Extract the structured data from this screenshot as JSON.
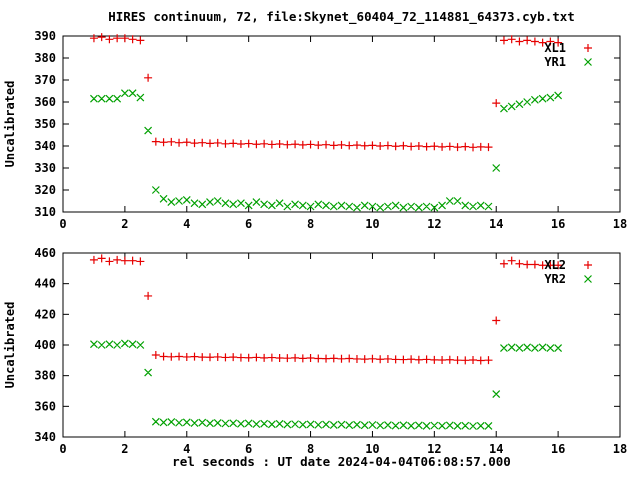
{
  "title": "HIRES continuum, 72, file:Skynet_60404_72_114881_64373.cyb.txt",
  "xlabel": "rel seconds : UT date 2024-04-04T06:08:57.000",
  "colors": {
    "red": "#e60000",
    "green": "#00a000",
    "axis": "#000000",
    "background": "#ffffff"
  },
  "chart_data": [
    {
      "type": "scatter",
      "panel": "top",
      "ylabel": "Uncalibrated",
      "xlim": [
        0,
        18
      ],
      "ylim": [
        310,
        390
      ],
      "xticks": [
        0,
        2,
        4,
        6,
        8,
        10,
        12,
        14,
        16,
        18
      ],
      "yticks": [
        310,
        320,
        330,
        340,
        350,
        360,
        370,
        380,
        390
      ],
      "grid": false,
      "legend_position": "top-right-inside",
      "legend": [
        {
          "label": "XL1",
          "marker": "plus",
          "color": "#e60000"
        },
        {
          "label": "YR1",
          "marker": "cross",
          "color": "#00a000"
        }
      ],
      "x": [
        1.0,
        1.25,
        1.5,
        1.75,
        2.0,
        2.25,
        2.5,
        2.75,
        3.0,
        3.25,
        3.5,
        3.75,
        4.0,
        4.25,
        4.5,
        4.75,
        5.0,
        5.25,
        5.5,
        5.75,
        6.0,
        6.25,
        6.5,
        6.75,
        7.0,
        7.25,
        7.5,
        7.75,
        8.0,
        8.25,
        8.5,
        8.75,
        9.0,
        9.25,
        9.5,
        9.75,
        10.0,
        10.25,
        10.5,
        10.75,
        11.0,
        11.25,
        11.5,
        11.75,
        12.0,
        12.25,
        12.5,
        12.75,
        13.0,
        13.25,
        13.5,
        13.75,
        14.0,
        14.25,
        14.5,
        14.75,
        15.0,
        15.25,
        15.5,
        15.75,
        16.0
      ],
      "series": [
        {
          "name": "XL1",
          "marker": "plus",
          "color": "#e60000",
          "values": [
            389,
            389.5,
            388.5,
            389,
            389,
            388.5,
            388,
            371,
            342,
            341.7,
            341.9,
            341.5,
            341.7,
            341.3,
            341.5,
            341.2,
            341.4,
            341.0,
            341.2,
            340.9,
            341.1,
            340.8,
            341.0,
            340.7,
            340.9,
            340.6,
            340.8,
            340.5,
            340.7,
            340.4,
            340.6,
            340.3,
            340.5,
            340.2,
            340.4,
            340.1,
            340.3,
            340.0,
            340.2,
            339.9,
            340.1,
            339.8,
            340.0,
            339.7,
            339.9,
            339.6,
            339.8,
            339.5,
            339.7,
            339.4,
            339.6,
            339.5,
            359.5,
            388,
            388.5,
            387.5,
            388,
            387.5,
            387,
            387.5,
            387
          ]
        },
        {
          "name": "YR1",
          "marker": "cross",
          "color": "#00a000",
          "values": [
            361.5,
            361.5,
            361.5,
            361.5,
            364,
            364,
            362,
            347,
            320,
            316,
            314.5,
            315,
            315.5,
            314,
            313.5,
            314.5,
            315,
            314,
            313.5,
            314,
            313,
            314.5,
            313.5,
            313,
            314,
            312.5,
            313.5,
            313,
            312.5,
            313.5,
            313,
            312.5,
            313,
            312.5,
            312,
            313,
            312.5,
            312,
            312.5,
            313,
            312,
            312.5,
            312,
            312.5,
            312,
            313,
            315,
            315,
            313,
            312.5,
            313,
            312.5,
            330,
            357,
            358,
            359,
            360,
            361,
            361.5,
            362,
            363
          ]
        }
      ]
    },
    {
      "type": "scatter",
      "panel": "bottom",
      "ylabel": "Uncalibrated",
      "xlim": [
        0,
        18
      ],
      "ylim": [
        340,
        460
      ],
      "xticks": [
        0,
        2,
        4,
        6,
        8,
        10,
        12,
        14,
        16,
        18
      ],
      "yticks": [
        340,
        360,
        380,
        400,
        420,
        440,
        460
      ],
      "grid": false,
      "legend_position": "top-right-inside",
      "legend": [
        {
          "label": "XL2",
          "marker": "plus",
          "color": "#e60000"
        },
        {
          "label": "YR2",
          "marker": "cross",
          "color": "#00a000"
        }
      ],
      "x": [
        1.0,
        1.25,
        1.5,
        1.75,
        2.0,
        2.25,
        2.5,
        2.75,
        3.0,
        3.25,
        3.5,
        3.75,
        4.0,
        4.25,
        4.5,
        4.75,
        5.0,
        5.25,
        5.5,
        5.75,
        6.0,
        6.25,
        6.5,
        6.75,
        7.0,
        7.25,
        7.5,
        7.75,
        8.0,
        8.25,
        8.5,
        8.75,
        9.0,
        9.25,
        9.5,
        9.75,
        10.0,
        10.25,
        10.5,
        10.75,
        11.0,
        11.25,
        11.5,
        11.75,
        12.0,
        12.25,
        12.5,
        12.75,
        13.0,
        13.25,
        13.5,
        13.75,
        14.0,
        14.25,
        14.5,
        14.75,
        15.0,
        15.25,
        15.5,
        15.75,
        16.0
      ],
      "series": [
        {
          "name": "XL2",
          "marker": "plus",
          "color": "#e60000",
          "values": [
            455.5,
            456.5,
            454.5,
            455.5,
            455,
            455,
            454.5,
            432,
            393.5,
            392.5,
            392.3,
            392.5,
            392.2,
            392.4,
            392.1,
            392.0,
            392.2,
            391.9,
            392.1,
            391.8,
            391.7,
            391.9,
            391.6,
            391.8,
            391.5,
            391.4,
            391.6,
            391.3,
            391.5,
            391.2,
            391.1,
            391.3,
            391.0,
            391.2,
            390.9,
            390.8,
            391.0,
            390.7,
            390.9,
            390.6,
            390.5,
            390.7,
            390.4,
            390.6,
            390.3,
            390.2,
            390.4,
            390.1,
            390.0,
            390.2,
            389.9,
            390.1,
            416,
            453,
            455,
            453,
            452.5,
            452.5,
            452,
            452,
            452
          ]
        },
        {
          "name": "YR2",
          "marker": "cross",
          "color": "#00a000",
          "values": [
            400.5,
            400,
            400.5,
            400,
            401,
            400.5,
            400,
            382,
            350,
            349.5,
            349.8,
            349.3,
            349.6,
            349.1,
            349.4,
            348.9,
            349.2,
            348.8,
            349.0,
            348.6,
            348.9,
            348.4,
            348.7,
            348.3,
            348.6,
            348.1,
            348.4,
            348.0,
            348.3,
            347.9,
            348.2,
            347.8,
            348.1,
            347.7,
            348.0,
            347.6,
            347.9,
            347.5,
            347.8,
            347.4,
            347.7,
            347.3,
            347.6,
            347.2,
            347.5,
            347.3,
            347.6,
            347.2,
            347.4,
            347.1,
            347.3,
            347.2,
            368,
            398,
            398.5,
            398,
            398.5,
            398,
            398.5,
            398,
            398
          ]
        }
      ]
    }
  ]
}
